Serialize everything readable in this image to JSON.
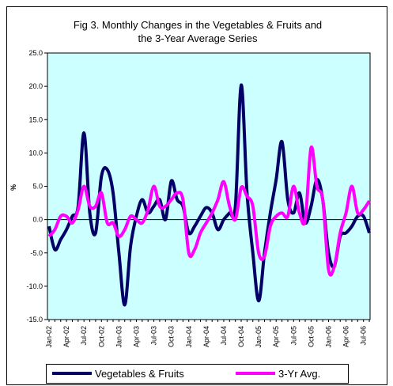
{
  "chart_data": {
    "type": "line",
    "title": [
      "Fig 3. Monthly Changes in the Vegetables & Fruits and",
      "the 3-Year Average Series"
    ],
    "y_label": "%",
    "categories": [
      "Jan-02",
      null,
      null,
      "Apr-02",
      null,
      null,
      "Jul-02",
      null,
      null,
      "Oct-02",
      null,
      null,
      "Jan-03",
      null,
      null,
      "Apr-03",
      null,
      null,
      "Jul-03",
      null,
      null,
      "Oct-03",
      null,
      null,
      "Jan-04",
      null,
      null,
      "Apr-04",
      null,
      null,
      "Jul-04",
      null,
      null,
      "Oct-04",
      null,
      null,
      "Jan-05",
      null,
      null,
      "Apr-05",
      null,
      null,
      "Jul-05",
      null,
      null,
      "Oct-05",
      null,
      null,
      "Jan-06",
      null,
      null,
      "Apr-06",
      null,
      null,
      "Jul-06",
      null
    ],
    "series": [
      {
        "name": "Vegetables & Fruits",
        "color": "#000066",
        "values": [
          -1,
          -4.5,
          -3,
          -1.5,
          0.5,
          2,
          13,
          1,
          -2,
          6.5,
          7.5,
          4,
          -5,
          -12.8,
          -4,
          0.5,
          3,
          1,
          2,
          3,
          0,
          5.8,
          3,
          2,
          -2,
          -1,
          0.5,
          1.8,
          1,
          -1.5,
          0,
          1,
          2,
          20.2,
          4,
          -5,
          -12.2,
          -5,
          1,
          6,
          11.7,
          3,
          1,
          4,
          -0.5,
          2,
          6,
          3,
          -5,
          -7,
          -2.5,
          -2,
          -1,
          0.5,
          0.5,
          -2
        ]
      },
      {
        "name": "3-Yr Avg.",
        "color": "#ff00ff",
        "values": [
          -2.5,
          -1.5,
          0.5,
          0.5,
          -0.5,
          1.5,
          5,
          2,
          2,
          4,
          -0.5,
          -0.5,
          -2.5,
          -1.5,
          0.5,
          0,
          -0.5,
          1.5,
          5,
          2,
          2,
          3,
          4,
          3,
          -5,
          -4.5,
          -2,
          -0.5,
          1,
          3,
          5.7,
          2,
          0,
          4.8,
          3.5,
          2,
          -5,
          -5.5,
          -1,
          0.5,
          1,
          0.5,
          5,
          1,
          0,
          10.8,
          5,
          3,
          -7.5,
          -7,
          -2,
          1,
          5,
          1,
          1.5,
          2.8
        ]
      }
    ],
    "ylim": [
      -15,
      25
    ],
    "yticks": [
      {
        "value": -15,
        "label": "-15.0"
      },
      {
        "value": -10,
        "label": "-10.0"
      },
      {
        "value": -5,
        "label": "-5.0"
      },
      {
        "value": 0,
        "label": "0.0"
      },
      {
        "value": 5,
        "label": "5.0"
      },
      {
        "value": 10,
        "label": "10.0"
      },
      {
        "value": 15,
        "label": "15.0"
      },
      {
        "value": 20,
        "label": "20.0"
      },
      {
        "value": 25,
        "label": "25.0"
      }
    ],
    "plot_background": "#ccffff",
    "legend": "bottom"
  }
}
